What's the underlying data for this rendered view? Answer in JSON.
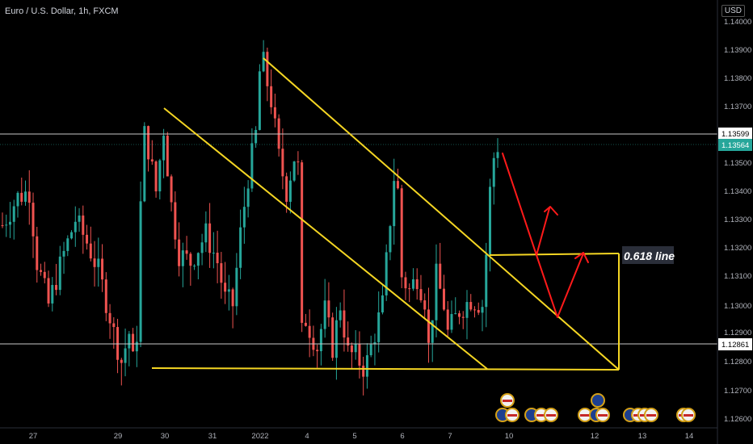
{
  "header": {
    "symbol_title": "Euro / U.S. Dollar, 1h, FXCM",
    "currency": "USD"
  },
  "colors": {
    "background": "#000000",
    "up_candle": "#26a69a",
    "down_candle": "#ef5350",
    "trend_line": "#f5d623",
    "arrow": "#ff1a1a",
    "horizontal_line": "#c0c0c0"
  },
  "price_axis": {
    "labels": [
      "1.14000",
      "1.13900",
      "1.13800",
      "1.13700",
      "1.13599",
      "1.13564",
      "1.13500",
      "1.13400",
      "1.13300",
      "1.13200",
      "1.13100",
      "1.13000",
      "1.12900",
      "1.12861",
      "1.12800",
      "1.12700",
      "1.12600"
    ],
    "tag_level": "1.13599",
    "tag_last_price": "1.13564",
    "tag_support": "1.12861"
  },
  "time_axis": {
    "labels": [
      "27",
      "29",
      "30",
      "31",
      "2022",
      "4",
      "5",
      "6",
      "7",
      "10",
      "12",
      "13",
      "14"
    ]
  },
  "annotations": {
    "fib_label": "0.618 line"
  },
  "chart_data": {
    "type": "candlestick",
    "instrument": "Euro / U.S. Dollar",
    "timeframe": "1h",
    "ylim": [
      1.1255,
      1.1405
    ],
    "horizontal_levels": [
      1.13599,
      1.12861
    ],
    "last_price": 1.13564,
    "path_points": [
      [
        0,
        1.1328
      ],
      [
        4,
        1.1338
      ],
      [
        7,
        1.134
      ],
      [
        9,
        1.1315
      ],
      [
        12,
        1.13
      ],
      [
        16,
        1.1318
      ],
      [
        19,
        1.133
      ],
      [
        22,
        1.1322
      ],
      [
        25,
        1.1312
      ],
      [
        28,
        1.1296
      ],
      [
        29,
        1.129
      ],
      [
        31,
        1.128
      ],
      [
        33,
        1.129
      ],
      [
        34,
        1.128
      ],
      [
        35,
        1.129
      ],
      [
        36,
        1.1335
      ],
      [
        37,
        1.136
      ],
      [
        38,
        1.1355
      ],
      [
        40,
        1.134
      ],
      [
        42,
        1.1362
      ],
      [
        44,
        1.1335
      ],
      [
        46,
        1.1318
      ],
      [
        49,
        1.1315
      ],
      [
        53,
        1.1325
      ],
      [
        56,
        1.1315
      ],
      [
        58,
        1.1302
      ],
      [
        60,
        1.13
      ],
      [
        62,
        1.1325
      ],
      [
        64,
        1.1345
      ],
      [
        66,
        1.136
      ],
      [
        67,
        1.1382
      ],
      [
        68,
        1.1385
      ],
      [
        69,
        1.1378
      ],
      [
        70,
        1.1372
      ],
      [
        72,
        1.1352
      ],
      [
        74,
        1.134
      ],
      [
        76,
        1.1352
      ],
      [
        77,
        1.1348
      ],
      [
        78,
        1.129
      ],
      [
        79,
        1.1295
      ],
      [
        82,
        1.1285
      ],
      [
        84,
        1.1298
      ],
      [
        86,
        1.1285
      ],
      [
        88,
        1.13
      ],
      [
        90,
        1.1283
      ],
      [
        92,
        1.1282
      ],
      [
        94,
        1.1278
      ],
      [
        95,
        1.128
      ],
      [
        97,
        1.129
      ],
      [
        99,
        1.13
      ],
      [
        101,
        1.133
      ],
      [
        102,
        1.1345
      ],
      [
        103,
        1.134
      ],
      [
        104,
        1.131
      ],
      [
        106,
        1.1305
      ],
      [
        108,
        1.131
      ],
      [
        110,
        1.1302
      ],
      [
        111,
        1.1285
      ],
      [
        113,
        1.131
      ],
      [
        115,
        1.13
      ],
      [
        116,
        1.129
      ],
      [
        119,
        1.1298
      ],
      [
        122,
        1.1302
      ],
      [
        125,
        1.13
      ],
      [
        126,
        1.1318
      ],
      [
        127,
        1.134
      ],
      [
        128,
        1.1352
      ],
      [
        129,
        1.1356
      ]
    ],
    "symbol_label": "Euro / U.S. Dollar, 1h, FXCM"
  }
}
